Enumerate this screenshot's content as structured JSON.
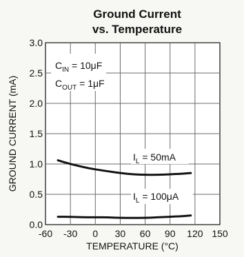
{
  "chart_data": {
    "type": "line",
    "title": "Ground Current",
    "subtitle": "vs. Temperature",
    "xlabel": "TEMPERATURE (°C)",
    "ylabel": "GROUND CURRENT (mA)",
    "xlim": [
      -60,
      150
    ],
    "ylim": [
      0.0,
      3.0
    ],
    "xticks": [
      -60,
      -30,
      0,
      30,
      60,
      90,
      120,
      150
    ],
    "xtick_labels": [
      "-60",
      "-30",
      "0",
      "30",
      "60",
      "90",
      "120",
      "150"
    ],
    "yticks": [
      0.0,
      0.5,
      1.0,
      1.5,
      2.0,
      2.5,
      3.0
    ],
    "ytick_labels": [
      "0.0",
      "0.5",
      "1.0",
      "1.5",
      "2.0",
      "2.5",
      "3.0"
    ],
    "grid": true,
    "conditions": {
      "cin": {
        "main": "C",
        "sub": "IN",
        "rest": " = 10μF"
      },
      "cout": {
        "main": "C",
        "sub": "OUT",
        "rest": " = 1μF"
      }
    },
    "series": [
      {
        "label_main": "I",
        "label_sub": "L",
        "label_rest": " = 50mA",
        "x": [
          -45,
          -30,
          -15,
          0,
          15,
          30,
          45,
          60,
          75,
          90,
          105,
          115
        ],
        "y": [
          1.06,
          1.0,
          0.95,
          0.91,
          0.88,
          0.85,
          0.83,
          0.82,
          0.82,
          0.83,
          0.84,
          0.85
        ]
      },
      {
        "label_main": "I",
        "label_sub": "L",
        "label_rest": " = 100μA",
        "x": [
          -45,
          -30,
          -15,
          0,
          15,
          30,
          45,
          60,
          75,
          90,
          105,
          115
        ],
        "y": [
          0.13,
          0.13,
          0.12,
          0.12,
          0.12,
          0.11,
          0.11,
          0.11,
          0.12,
          0.13,
          0.14,
          0.15
        ]
      }
    ]
  }
}
